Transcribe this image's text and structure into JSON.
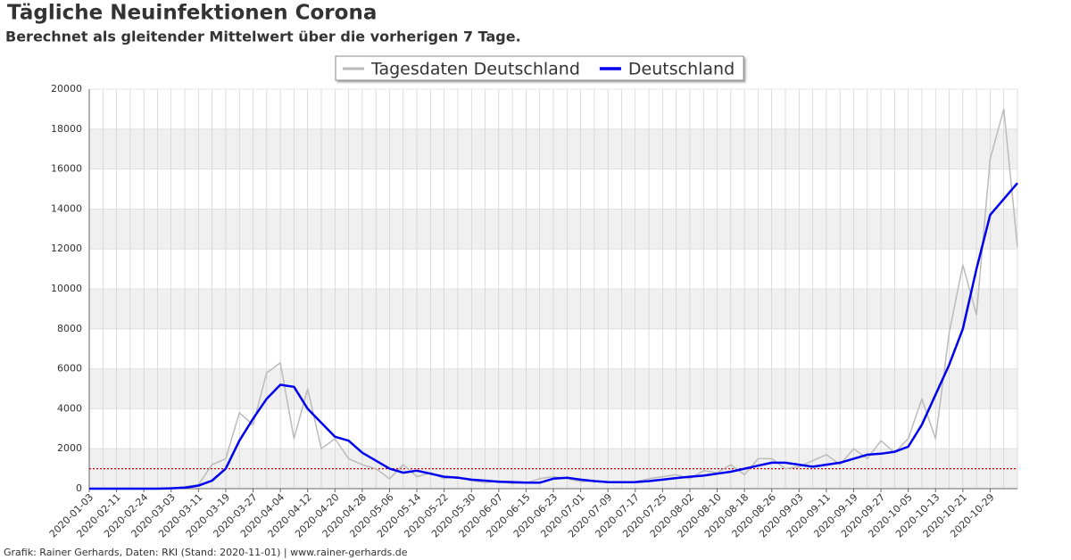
{
  "chart_data": {
    "type": "line",
    "title": "Tägliche Neuinfektionen Corona",
    "subtitle": "Berechnet als gleitender Mittelwert über die vorherigen 7 Tage.",
    "footer": "Grafik: Rainer Gerhards, Daten: RKI (Stand: 2020-11-01) | www.rainer-gerhards.de",
    "categories": [
      "2020-01-03",
      null,
      "2020-02-11",
      null,
      "2020-02-24",
      null,
      "2020-03-03",
      null,
      "2020-03-11",
      null,
      "2020-03-19",
      null,
      "2020-03-27",
      null,
      "2020-04-04",
      null,
      "2020-04-12",
      null,
      "2020-04-20",
      null,
      "2020-04-28",
      null,
      "2020-05-06",
      null,
      "2020-05-14",
      null,
      "2020-05-22",
      null,
      "2020-05-30",
      null,
      "2020-06-07",
      null,
      "2020-06-15",
      null,
      "2020-06-23",
      null,
      "2020-07-01",
      null,
      "2020-07-09",
      null,
      "2020-07-17",
      null,
      "2020-07-25",
      null,
      "2020-08-02",
      null,
      "2020-08-10",
      null,
      "2020-08-18",
      null,
      "2020-08-26",
      null,
      "2020-09-03",
      null,
      "2020-09-11",
      null,
      "2020-09-19",
      null,
      "2020-09-27",
      null,
      "2020-10-05",
      null,
      "2020-10-13",
      null,
      "2020-10-21",
      null,
      "2020-10-29",
      null,
      null
    ],
    "series": [
      {
        "name": "Tagesdaten Deutschland",
        "color": "#bbbbbb",
        "width": 1.5,
        "values": [
          0,
          0,
          0,
          0,
          0,
          0,
          30,
          100,
          200,
          1200,
          1500,
          3800,
          3200,
          5800,
          6300,
          2500,
          5000,
          2000,
          2500,
          1500,
          1200,
          1000,
          500,
          1200,
          600,
          800,
          500,
          600,
          400,
          300,
          400,
          250,
          300,
          500,
          600,
          500,
          350,
          400,
          300,
          350,
          350,
          500,
          600,
          700,
          500,
          900,
          800,
          1200,
          700,
          1500,
          1500,
          1000,
          1100,
          1400,
          1700,
          1200,
          2000,
          1500,
          2400,
          1800,
          2500,
          4500,
          2500,
          7800,
          11200,
          8700,
          16500,
          19000,
          12100
        ]
      },
      {
        "name": "Deutschland",
        "color": "#0000ee",
        "width": 2.5,
        "values": [
          0,
          0,
          0,
          0,
          0,
          0,
          20,
          50,
          150,
          400,
          1000,
          2400,
          3500,
          4500,
          5200,
          5100,
          4000,
          3300,
          2600,
          2400,
          1800,
          1400,
          1000,
          800,
          900,
          750,
          600,
          550,
          450,
          400,
          350,
          330,
          300,
          300,
          500,
          550,
          450,
          380,
          330,
          320,
          330,
          380,
          450,
          530,
          600,
          650,
          750,
          850,
          1000,
          1150,
          1300,
          1300,
          1200,
          1100,
          1200,
          1300,
          1500,
          1700,
          1750,
          1850,
          2100,
          3200,
          4700,
          6200,
          8000,
          11000,
          13700,
          14500,
          15300
        ]
      }
    ],
    "reference_line": {
      "value": 1000,
      "color": "#cc0000"
    },
    "ylim": [
      0,
      20000
    ],
    "yticks": [
      0,
      2000,
      4000,
      6000,
      8000,
      10000,
      12000,
      14000,
      16000,
      18000,
      20000
    ],
    "grid": true
  }
}
